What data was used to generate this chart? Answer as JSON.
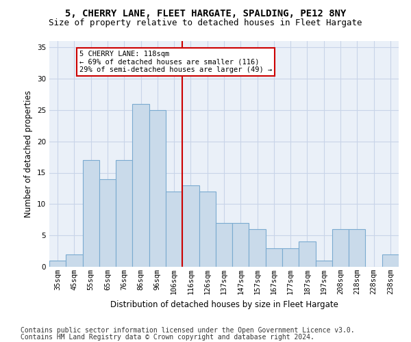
{
  "title1": "5, CHERRY LANE, FLEET HARGATE, SPALDING, PE12 8NY",
  "title2": "Size of property relative to detached houses in Fleet Hargate",
  "xlabel": "Distribution of detached houses by size in Fleet Hargate",
  "ylabel": "Number of detached properties",
  "categories": [
    "35sqm",
    "45sqm",
    "55sqm",
    "65sqm",
    "76sqm",
    "86sqm",
    "96sqm",
    "106sqm",
    "116sqm",
    "126sqm",
    "137sqm",
    "147sqm",
    "157sqm",
    "167sqm",
    "177sqm",
    "187sqm",
    "197sqm",
    "208sqm",
    "218sqm",
    "228sqm",
    "238sqm"
  ],
  "values": [
    1,
    2,
    17,
    14,
    17,
    26,
    25,
    12,
    13,
    12,
    7,
    7,
    6,
    3,
    3,
    4,
    1,
    6,
    6,
    0,
    2
  ],
  "bar_color": "#c9daea",
  "bar_edge_color": "#7aaad0",
  "highlight_line_index": 8,
  "highlight_line_color": "#cc0000",
  "annotation_text_line1": "5 CHERRY LANE: 118sqm",
  "annotation_text_line2": "← 69% of detached houses are smaller (116)",
  "annotation_text_line3": "29% of semi-detached houses are larger (49) →",
  "ylim": [
    0,
    36
  ],
  "yticks": [
    0,
    5,
    10,
    15,
    20,
    25,
    30,
    35
  ],
  "bg_color": "#eaf0f8",
  "grid_color": "#c8d4e8",
  "footer_line1": "Contains HM Land Registry data © Crown copyright and database right 2024.",
  "footer_line2": "Contains public sector information licensed under the Open Government Licence v3.0.",
  "title1_fontsize": 10,
  "title2_fontsize": 9,
  "xlabel_fontsize": 8.5,
  "ylabel_fontsize": 8.5,
  "tick_fontsize": 7.5,
  "footer_fontsize": 7,
  "annot_fontsize": 7.5
}
